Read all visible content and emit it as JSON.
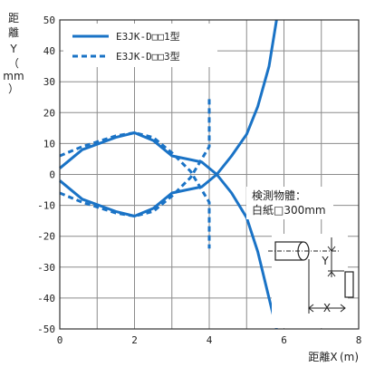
{
  "chart_data": {
    "type": "line",
    "xlabel": "距離X (m)",
    "ylabel_chars": [
      "距",
      "離",
      "Y",
      "（",
      "mm",
      "）"
    ],
    "xlim": [
      0,
      8
    ],
    "ylim": [
      -50,
      50
    ],
    "xticks": [
      0,
      2,
      4,
      6,
      8
    ],
    "yticks": [
      50,
      40,
      30,
      20,
      10,
      0,
      -10,
      -20,
      -30,
      -40,
      -50
    ],
    "grid": true,
    "legend_position": "top-left",
    "series": [
      {
        "name": "E3JK-D□□1型",
        "style": "solid",
        "color": "#1a73c6",
        "segments": [
          [
            [
              0,
              2
            ],
            [
              0.6,
              8
            ],
            [
              1.5,
              12
            ],
            [
              2.0,
              13.5
            ],
            [
              2.5,
              11
            ],
            [
              3.0,
              6
            ],
            [
              3.4,
              5
            ],
            [
              3.8,
              4
            ],
            [
              4.2,
              0
            ],
            [
              4.6,
              -6
            ],
            [
              5.0,
              -14
            ],
            [
              5.3,
              -25
            ],
            [
              5.6,
              -40
            ],
            [
              5.8,
              -50
            ]
          ],
          [
            [
              0,
              -2
            ],
            [
              0.6,
              -8
            ],
            [
              1.5,
              -12
            ],
            [
              2.0,
              -13.5
            ],
            [
              2.5,
              -11
            ],
            [
              3.0,
              -6
            ],
            [
              3.4,
              -5
            ],
            [
              3.8,
              -4
            ],
            [
              4.2,
              0
            ],
            [
              4.6,
              6
            ],
            [
              5.0,
              13
            ],
            [
              5.3,
              22
            ],
            [
              5.6,
              35
            ],
            [
              5.8,
              50
            ]
          ]
        ]
      },
      {
        "name": "E3JK-D□□3型",
        "style": "dashed",
        "color": "#1a73c6",
        "segments": [
          [
            [
              0,
              6
            ],
            [
              0.6,
              9
            ],
            [
              1.5,
              12.5
            ],
            [
              2.0,
              13.5
            ],
            [
              2.5,
              12
            ],
            [
              3.0,
              7
            ],
            [
              3.5,
              1
            ],
            [
              4.0,
              -9
            ],
            [
              4.0,
              -24
            ]
          ],
          [
            [
              0,
              -6
            ],
            [
              0.6,
              -9
            ],
            [
              1.5,
              -12.5
            ],
            [
              2.0,
              -13.5
            ],
            [
              2.5,
              -12
            ],
            [
              3.0,
              -7
            ],
            [
              3.5,
              -1
            ],
            [
              4.0,
              9
            ],
            [
              4.0,
              25
            ]
          ]
        ]
      }
    ],
    "annotation": {
      "line1": "検測物體：",
      "line2": "白紙□300mm",
      "y_mark": "Y",
      "x_mark": "X"
    }
  }
}
